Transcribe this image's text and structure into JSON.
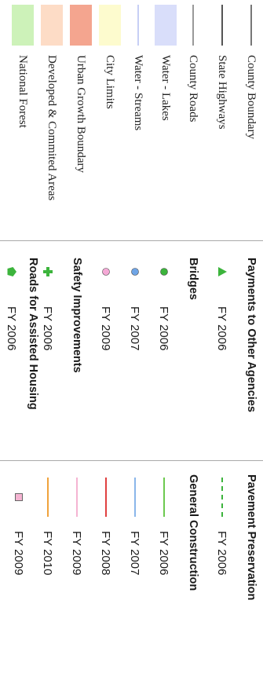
{
  "base_layers": [
    {
      "label": "County Boundary",
      "symbol": "line",
      "color": "#777777"
    },
    {
      "label": "State Highways",
      "symbol": "line",
      "color": "#555555"
    },
    {
      "label": "County Roads",
      "symbol": "line",
      "color": "#999999"
    },
    {
      "label": "Water - Lakes",
      "symbol": "fill",
      "color": "#d9defa"
    },
    {
      "label": "Water - Streams",
      "symbol": "line",
      "color": "#c7cff5"
    },
    {
      "label": "City Limits",
      "symbol": "fill",
      "color": "#fdfbce"
    },
    {
      "label": "Urban Growth Boundary",
      "symbol": "fill",
      "color": "#f4a58f"
    },
    {
      "label": "Developed & Commited Areas",
      "symbol": "fill",
      "color": "#fddcc6"
    },
    {
      "label": "National Forest",
      "symbol": "fill",
      "color": "#cdf2b9"
    }
  ],
  "project_groups": [
    {
      "title": "Payments to Other Agencies",
      "items": [
        {
          "year": "FY 2006",
          "icon": "triangle-icon",
          "color": "#3cb43c"
        }
      ]
    },
    {
      "title": "Bridges",
      "items": [
        {
          "year": "FY 2006",
          "icon": "circle-icon",
          "color": "#3cb43c"
        },
        {
          "year": "FY 2007",
          "icon": "circle-icon",
          "color": "#6fa5e6"
        },
        {
          "year": "FY 2009",
          "icon": "circle-icon",
          "color": "#f5a9d6"
        }
      ]
    },
    {
      "title": "Safety Improvements",
      "items": [
        {
          "year": "FY 2006",
          "icon": "cross-icon",
          "color": "#3cb43c"
        }
      ]
    },
    {
      "title": "Roads for Assisted Housing",
      "items": [
        {
          "year": "FY 2006",
          "icon": "pentagon-icon",
          "color": "#3cb43c"
        }
      ]
    }
  ],
  "pavement": {
    "title": "Pavement Preservation",
    "items": [
      {
        "year": "FY 2006",
        "symbol": "dashed-line",
        "color": "#3cb43c"
      }
    ]
  },
  "general_construction": {
    "title": "General Construction",
    "items": [
      {
        "year": "FY 2006",
        "symbol": "line",
        "color": "#6cc94f"
      },
      {
        "year": "FY 2007",
        "symbol": "line",
        "color": "#8ab6ea"
      },
      {
        "year": "FY 2008",
        "symbol": "line",
        "color": "#e04040"
      },
      {
        "year": "FY 2009",
        "symbol": "line",
        "color": "#f5b4d2"
      },
      {
        "year": "FY 2010",
        "symbol": "line",
        "color": "#f0a23c"
      },
      {
        "year": "FY 2009",
        "symbol": "square",
        "color": "#f5b4d2"
      }
    ]
  }
}
